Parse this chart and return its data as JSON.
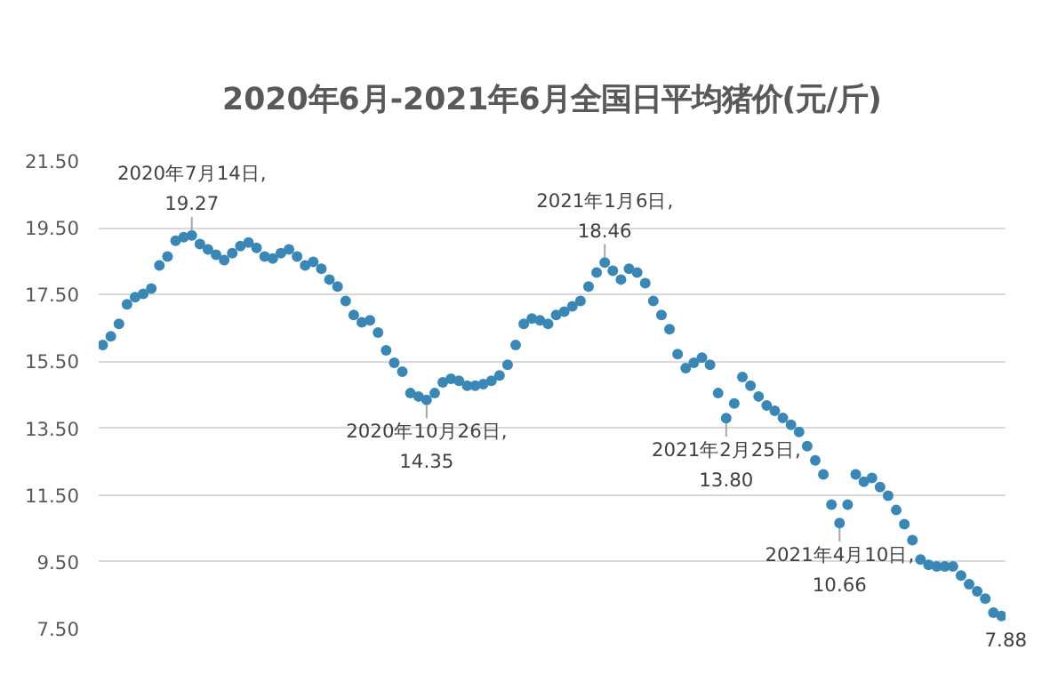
{
  "chart_data": {
    "type": "scatter",
    "title": "2020年6月-2021年6月全国日平均猪价(元/斤)",
    "categories": [
      null,
      null,
      null,
      null,
      null,
      null,
      null,
      null,
      null,
      null,
      null,
      null,
      null,
      null,
      null,
      null,
      null,
      null,
      null,
      null,
      null,
      null,
      null,
      null,
      null,
      null,
      null,
      null,
      null,
      null,
      null,
      null,
      null,
      null,
      null,
      null,
      null,
      null,
      null,
      null,
      null,
      null,
      null,
      null,
      null,
      null,
      null,
      null,
      null,
      null,
      null,
      null,
      null,
      null,
      null,
      null,
      null,
      null,
      null,
      null,
      null,
      null,
      null,
      null,
      null,
      null,
      null,
      null,
      null,
      null,
      null,
      null,
      null,
      null,
      null,
      null,
      null,
      null,
      null,
      null,
      null,
      null,
      null,
      null,
      null,
      null,
      null,
      null,
      null,
      null,
      null,
      null,
      null,
      null,
      null,
      null,
      null,
      null,
      null,
      null,
      null,
      null,
      null,
      null,
      null,
      null,
      null,
      null,
      null,
      null,
      null,
      null
    ],
    "series": [
      {
        "color": "#3a87b5",
        "values": [
          15.99,
          16.25,
          16.62,
          17.21,
          17.42,
          17.52,
          17.68,
          18.37,
          18.64,
          19.11,
          19.22,
          19.27,
          19.01,
          18.85,
          18.69,
          18.53,
          18.74,
          18.95,
          19.06,
          18.9,
          18.64,
          18.58,
          18.74,
          18.85,
          18.64,
          18.37,
          18.48,
          18.27,
          17.95,
          17.74,
          17.31,
          16.89,
          16.67,
          16.73,
          16.36,
          15.83,
          15.46,
          15.19,
          14.55,
          14.45,
          14.35,
          14.55,
          14.87,
          14.98,
          14.92,
          14.77,
          14.77,
          14.82,
          14.92,
          15.08,
          15.4,
          15.99,
          16.62,
          16.78,
          16.73,
          16.62,
          16.89,
          16.99,
          17.15,
          17.31,
          17.74,
          18.16,
          18.46,
          18.21,
          17.95,
          18.27,
          18.16,
          17.84,
          17.31,
          16.89,
          16.46,
          15.72,
          15.3,
          15.46,
          15.61,
          15.4,
          14.55,
          13.8,
          14.24,
          15.03,
          14.77,
          14.45,
          14.18,
          14.02,
          13.81,
          13.6,
          13.39,
          12.96,
          12.54,
          12.12,
          11.21,
          10.66,
          11.21,
          12.12,
          11.9,
          12.01,
          11.74,
          11.48,
          11.05,
          10.63,
          10.15,
          9.57,
          9.41,
          9.36,
          9.36,
          9.36,
          9.09,
          8.83,
          8.62,
          8.4,
          7.98,
          7.88
        ]
      }
    ],
    "marker": "circle",
    "ylim": [
      7.5,
      21.5
    ],
    "yticks": [
      {
        "value": 7.5,
        "label": "7.50"
      },
      {
        "value": 9.5,
        "label": "9.50"
      },
      {
        "value": 11.5,
        "label": "11.50"
      },
      {
        "value": 13.5,
        "label": "13.50"
      },
      {
        "value": 15.5,
        "label": "15.50"
      },
      {
        "value": 17.5,
        "label": "17.50"
      },
      {
        "value": 19.5,
        "label": "19.50"
      },
      {
        "value": 21.5,
        "label": "21.50"
      }
    ],
    "grid": "y",
    "tick_labels": "y",
    "annotations": [
      {
        "text": "2020年7月14日,\n19.27",
        "y": 19.27
      },
      {
        "text": "2020年10月26日,\n14.35",
        "y": 14.35
      },
      {
        "text": "2021年1月6日,\n18.46",
        "y": 18.46
      },
      {
        "text": "2021年2月25日,\n13.80",
        "y": 13.8
      },
      {
        "text": "2021年4月10日,\n10.66",
        "y": 10.66
      },
      {
        "text": "7.88",
        "y": 7.88
      }
    ]
  }
}
